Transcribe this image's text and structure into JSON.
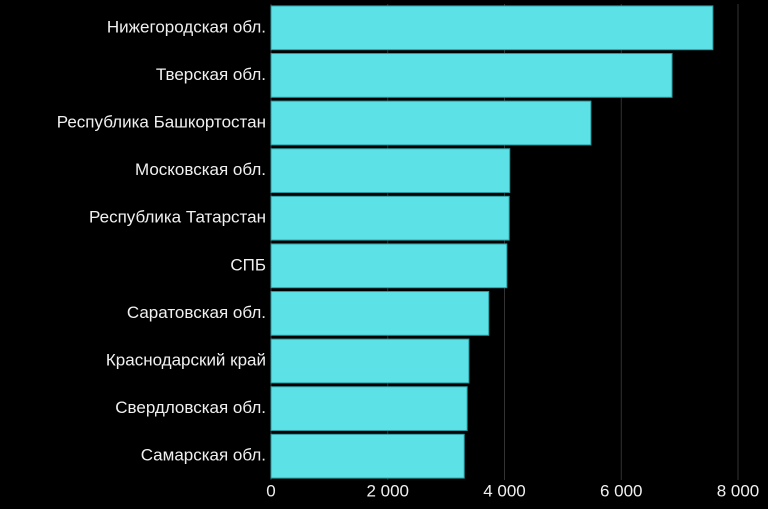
{
  "chart_data": {
    "type": "bar",
    "orientation": "horizontal",
    "categories": [
      "Нижегородская обл.",
      "Тверская обл.",
      "Республика Башкортостан",
      "Московская обл.",
      "Республика Татарстан",
      "СПБ",
      "Саратовская обл.",
      "Краснодарский край",
      "Свердловская обл.",
      "Самарская обл."
    ],
    "values": [
      7570,
      6870,
      5480,
      4090,
      4080,
      4040,
      3730,
      3390,
      3360,
      3310
    ],
    "color": "#5ce1e6",
    "xlim": [
      0,
      8000
    ],
    "xticks": [
      0,
      {
        "value": 2000,
        "label": "2 000"
      },
      {
        "value": 4000,
        "label": "4 000"
      },
      {
        "value": 6000,
        "label": "6 000"
      },
      {
        "value": 8000,
        "label": "8 000"
      }
    ],
    "grid": true
  }
}
